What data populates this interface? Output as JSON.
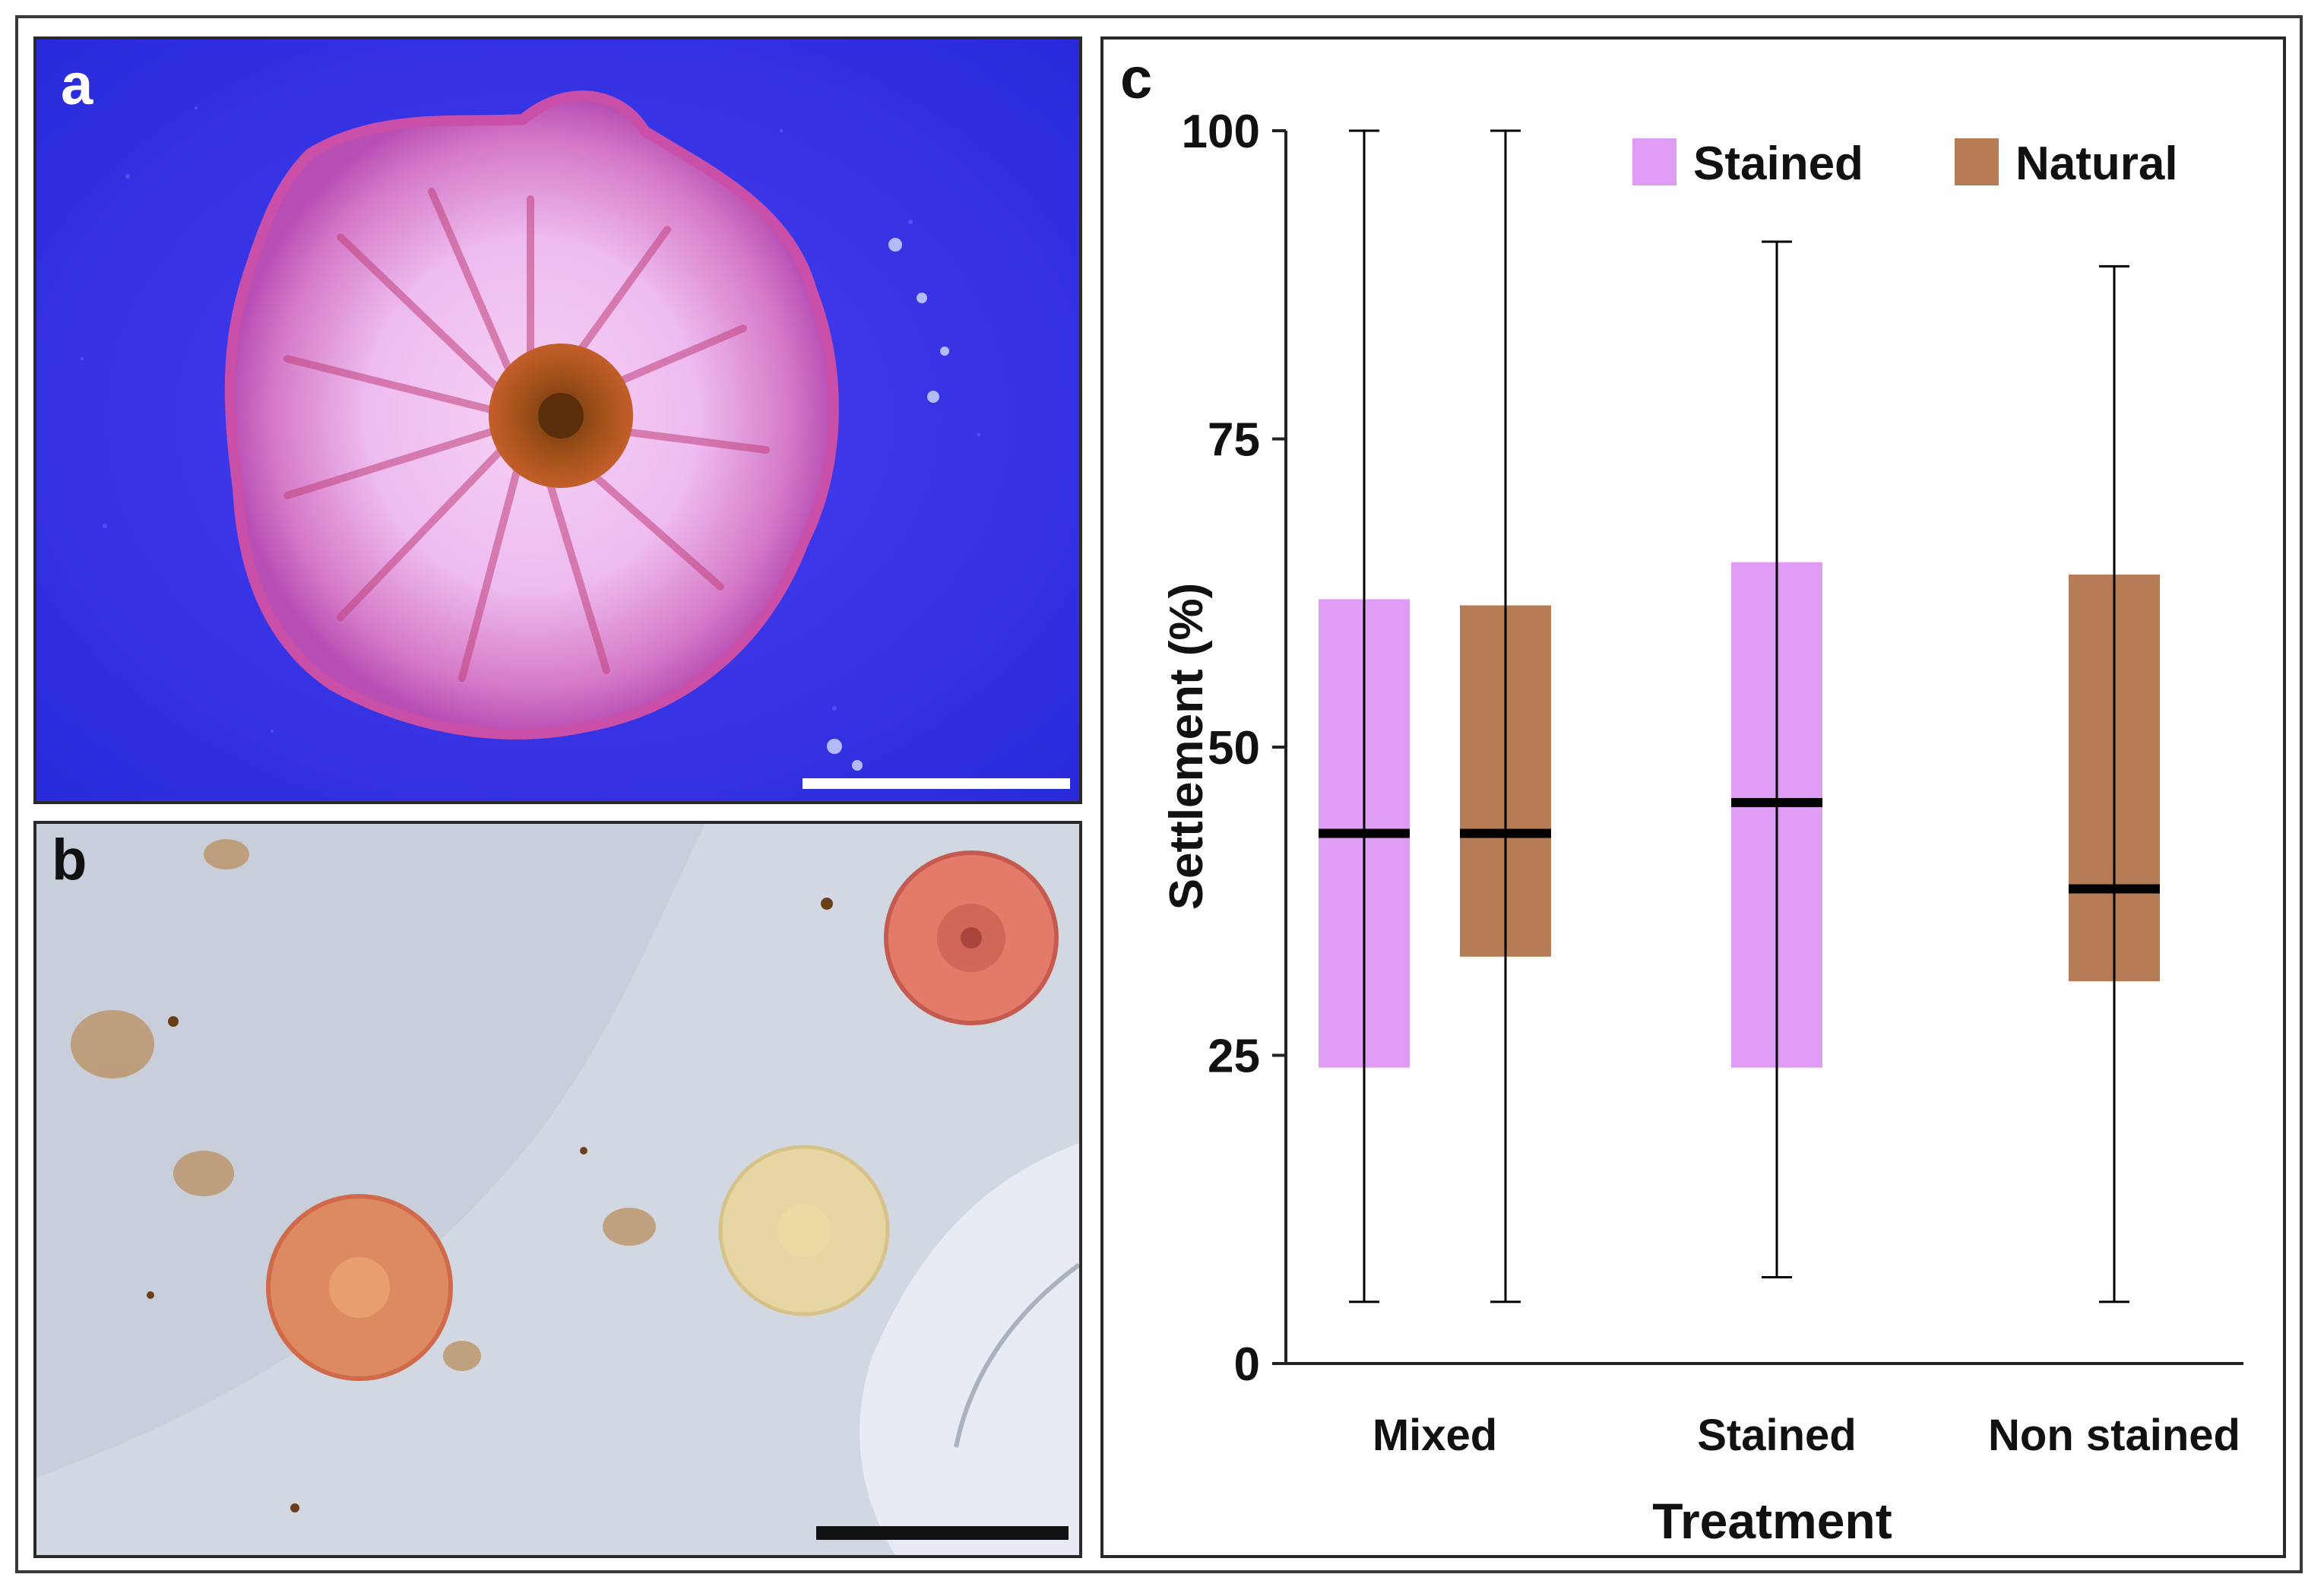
{
  "figure": {
    "panel_labels": {
      "a": "a",
      "b": "b",
      "c": "c"
    }
  },
  "colors": {
    "stained": "#df9cf5",
    "natural": "#b57c56",
    "median": "#000000",
    "whisker": "#000000",
    "photo_a_background": "#2e2fe6",
    "photo_b_background": "#c9d0dc"
  },
  "chart_data": {
    "type": "box",
    "xlabel": "Treatment",
    "ylabel": "Settlement (%)",
    "ylim": [
      0,
      100
    ],
    "yticks": [
      0,
      25,
      50,
      75,
      100
    ],
    "categories": [
      "Mixed",
      "Stained",
      "Non stained"
    ],
    "legend": {
      "position": "top-right",
      "entries": [
        {
          "name": "Stained",
          "color": "#df9cf5"
        },
        {
          "name": "Natural",
          "color": "#b57c56"
        }
      ]
    },
    "boxes": [
      {
        "category": "Mixed",
        "series": "Stained",
        "whisker_low": 5,
        "q1": 24,
        "median": 43,
        "q3": 62,
        "whisker_high": 100
      },
      {
        "category": "Mixed",
        "series": "Natural",
        "whisker_low": 5,
        "q1": 33,
        "median": 43,
        "q3": 61.5,
        "whisker_high": 100
      },
      {
        "category": "Stained",
        "series": "Stained",
        "whisker_low": 7,
        "q1": 24,
        "median": 45.5,
        "q3": 65,
        "whisker_high": 91
      },
      {
        "category": "Non stained",
        "series": "Natural",
        "whisker_low": 5,
        "q1": 31,
        "median": 38.5,
        "q3": 64,
        "whisker_high": 89
      }
    ]
  }
}
